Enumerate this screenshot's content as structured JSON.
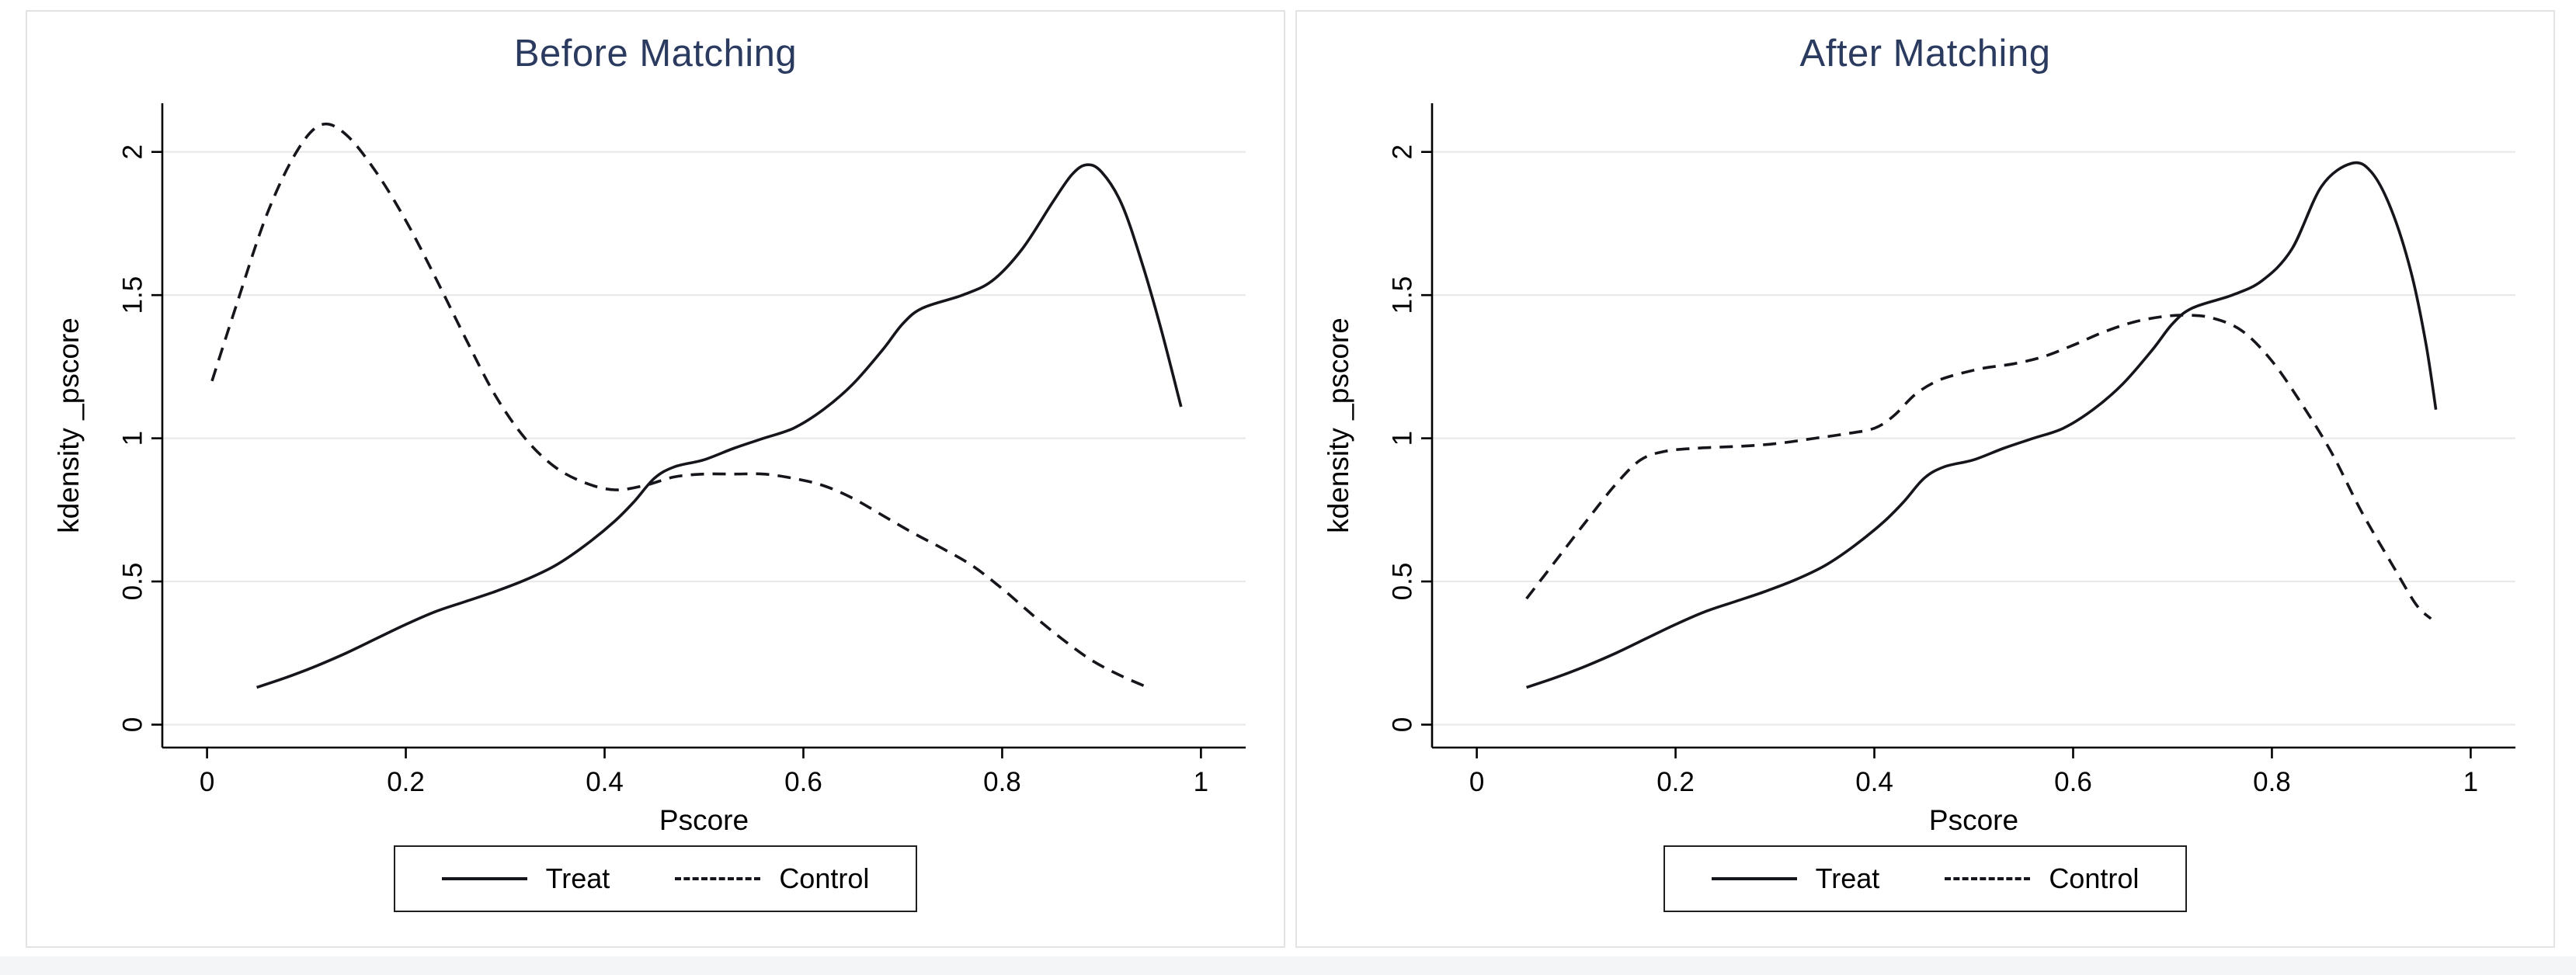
{
  "colors": {
    "title": "#2b3a5f",
    "series": "#15151c",
    "grid": "#e9e9e9",
    "axis": "#000000",
    "panel_border": "#e3e3e3",
    "legend_border": "#1f1f1f",
    "page_bg": "#ffffff",
    "footer": "#f4f5f7"
  },
  "chart_data": [
    {
      "type": "line",
      "title": "Before Matching",
      "xlabel": "Pscore",
      "ylabel": "kdensity _pscore",
      "xlim": [
        -0.045,
        1.045
      ],
      "ylim": [
        -0.08,
        2.17
      ],
      "xticks": [
        0,
        0.2,
        0.4,
        0.6,
        0.8,
        1
      ],
      "yticks": [
        0,
        0.5,
        1,
        1.5,
        2
      ],
      "grid": true,
      "legend_position": "bottom",
      "series": [
        {
          "name": "Treat",
          "style": "solid",
          "points": [
            [
              0.05,
              0.13
            ],
            [
              0.08,
              0.165
            ],
            [
              0.11,
              0.205
            ],
            [
              0.14,
              0.25
            ],
            [
              0.17,
              0.3
            ],
            [
              0.2,
              0.35
            ],
            [
              0.23,
              0.395
            ],
            [
              0.26,
              0.43
            ],
            [
              0.29,
              0.465
            ],
            [
              0.32,
              0.505
            ],
            [
              0.35,
              0.555
            ],
            [
              0.38,
              0.625
            ],
            [
              0.41,
              0.71
            ],
            [
              0.43,
              0.78
            ],
            [
              0.45,
              0.86
            ],
            [
              0.47,
              0.9
            ],
            [
              0.5,
              0.925
            ],
            [
              0.53,
              0.965
            ],
            [
              0.56,
              1.0
            ],
            [
              0.59,
              1.035
            ],
            [
              0.62,
              1.1
            ],
            [
              0.65,
              1.19
            ],
            [
              0.68,
              1.31
            ],
            [
              0.7,
              1.4
            ],
            [
              0.72,
              1.455
            ],
            [
              0.76,
              1.5
            ],
            [
              0.79,
              1.55
            ],
            [
              0.82,
              1.66
            ],
            [
              0.85,
              1.82
            ],
            [
              0.87,
              1.92
            ],
            [
              0.885,
              1.955
            ],
            [
              0.9,
              1.93
            ],
            [
              0.92,
              1.82
            ],
            [
              0.94,
              1.62
            ],
            [
              0.96,
              1.38
            ],
            [
              0.98,
              1.11
            ]
          ]
        },
        {
          "name": "Control",
          "style": "dashed",
          "points": [
            [
              0.005,
              1.2
            ],
            [
              0.03,
              1.47
            ],
            [
              0.06,
              1.78
            ],
            [
              0.09,
              2.0
            ],
            [
              0.115,
              2.095
            ],
            [
              0.14,
              2.06
            ],
            [
              0.17,
              1.93
            ],
            [
              0.2,
              1.76
            ],
            [
              0.23,
              1.56
            ],
            [
              0.26,
              1.35
            ],
            [
              0.29,
              1.15
            ],
            [
              0.32,
              1.0
            ],
            [
              0.35,
              0.9
            ],
            [
              0.38,
              0.845
            ],
            [
              0.41,
              0.82
            ],
            [
              0.44,
              0.835
            ],
            [
              0.47,
              0.865
            ],
            [
              0.5,
              0.875
            ],
            [
              0.53,
              0.875
            ],
            [
              0.56,
              0.875
            ],
            [
              0.59,
              0.86
            ],
            [
              0.62,
              0.835
            ],
            [
              0.65,
              0.79
            ],
            [
              0.68,
              0.73
            ],
            [
              0.71,
              0.67
            ],
            [
              0.74,
              0.615
            ],
            [
              0.77,
              0.555
            ],
            [
              0.8,
              0.475
            ],
            [
              0.83,
              0.385
            ],
            [
              0.86,
              0.3
            ],
            [
              0.89,
              0.225
            ],
            [
              0.92,
              0.17
            ],
            [
              0.95,
              0.125
            ]
          ]
        }
      ]
    },
    {
      "type": "line",
      "title": "After Matching",
      "xlabel": "Pscore",
      "ylabel": "kdensity _pscore",
      "xlim": [
        -0.045,
        1.045
      ],
      "ylim": [
        -0.08,
        2.17
      ],
      "xticks": [
        0,
        0.2,
        0.4,
        0.6,
        0.8,
        1
      ],
      "yticks": [
        0,
        0.5,
        1,
        1.5,
        2
      ],
      "grid": true,
      "legend_position": "bottom",
      "series": [
        {
          "name": "Treat",
          "style": "solid",
          "points": [
            [
              0.05,
              0.13
            ],
            [
              0.08,
              0.165
            ],
            [
              0.11,
              0.205
            ],
            [
              0.14,
              0.25
            ],
            [
              0.17,
              0.3
            ],
            [
              0.2,
              0.35
            ],
            [
              0.23,
              0.395
            ],
            [
              0.26,
              0.43
            ],
            [
              0.29,
              0.465
            ],
            [
              0.32,
              0.505
            ],
            [
              0.35,
              0.555
            ],
            [
              0.38,
              0.625
            ],
            [
              0.41,
              0.71
            ],
            [
              0.43,
              0.78
            ],
            [
              0.45,
              0.86
            ],
            [
              0.47,
              0.9
            ],
            [
              0.5,
              0.925
            ],
            [
              0.53,
              0.965
            ],
            [
              0.56,
              1.0
            ],
            [
              0.59,
              1.035
            ],
            [
              0.62,
              1.1
            ],
            [
              0.65,
              1.19
            ],
            [
              0.68,
              1.31
            ],
            [
              0.7,
              1.4
            ],
            [
              0.72,
              1.455
            ],
            [
              0.76,
              1.5
            ],
            [
              0.79,
              1.55
            ],
            [
              0.82,
              1.66
            ],
            [
              0.85,
              1.88
            ],
            [
              0.88,
              1.96
            ],
            [
              0.9,
              1.93
            ],
            [
              0.92,
              1.8
            ],
            [
              0.94,
              1.58
            ],
            [
              0.955,
              1.33
            ],
            [
              0.965,
              1.1
            ]
          ]
        },
        {
          "name": "Control",
          "style": "dashed",
          "points": [
            [
              0.05,
              0.44
            ],
            [
              0.08,
              0.575
            ],
            [
              0.11,
              0.71
            ],
            [
              0.14,
              0.84
            ],
            [
              0.165,
              0.925
            ],
            [
              0.19,
              0.955
            ],
            [
              0.22,
              0.965
            ],
            [
              0.25,
              0.97
            ],
            [
              0.28,
              0.975
            ],
            [
              0.31,
              0.985
            ],
            [
              0.34,
              1.0
            ],
            [
              0.37,
              1.015
            ],
            [
              0.4,
              1.035
            ],
            [
              0.42,
              1.08
            ],
            [
              0.44,
              1.15
            ],
            [
              0.46,
              1.195
            ],
            [
              0.48,
              1.22
            ],
            [
              0.51,
              1.245
            ],
            [
              0.54,
              1.26
            ],
            [
              0.57,
              1.285
            ],
            [
              0.6,
              1.325
            ],
            [
              0.63,
              1.37
            ],
            [
              0.66,
              1.405
            ],
            [
              0.69,
              1.425
            ],
            [
              0.715,
              1.43
            ],
            [
              0.74,
              1.42
            ],
            [
              0.77,
              1.375
            ],
            [
              0.8,
              1.27
            ],
            [
              0.83,
              1.12
            ],
            [
              0.86,
              0.95
            ],
            [
              0.89,
              0.745
            ],
            [
              0.92,
              0.565
            ],
            [
              0.945,
              0.42
            ],
            [
              0.96,
              0.37
            ]
          ]
        }
      ]
    }
  ]
}
